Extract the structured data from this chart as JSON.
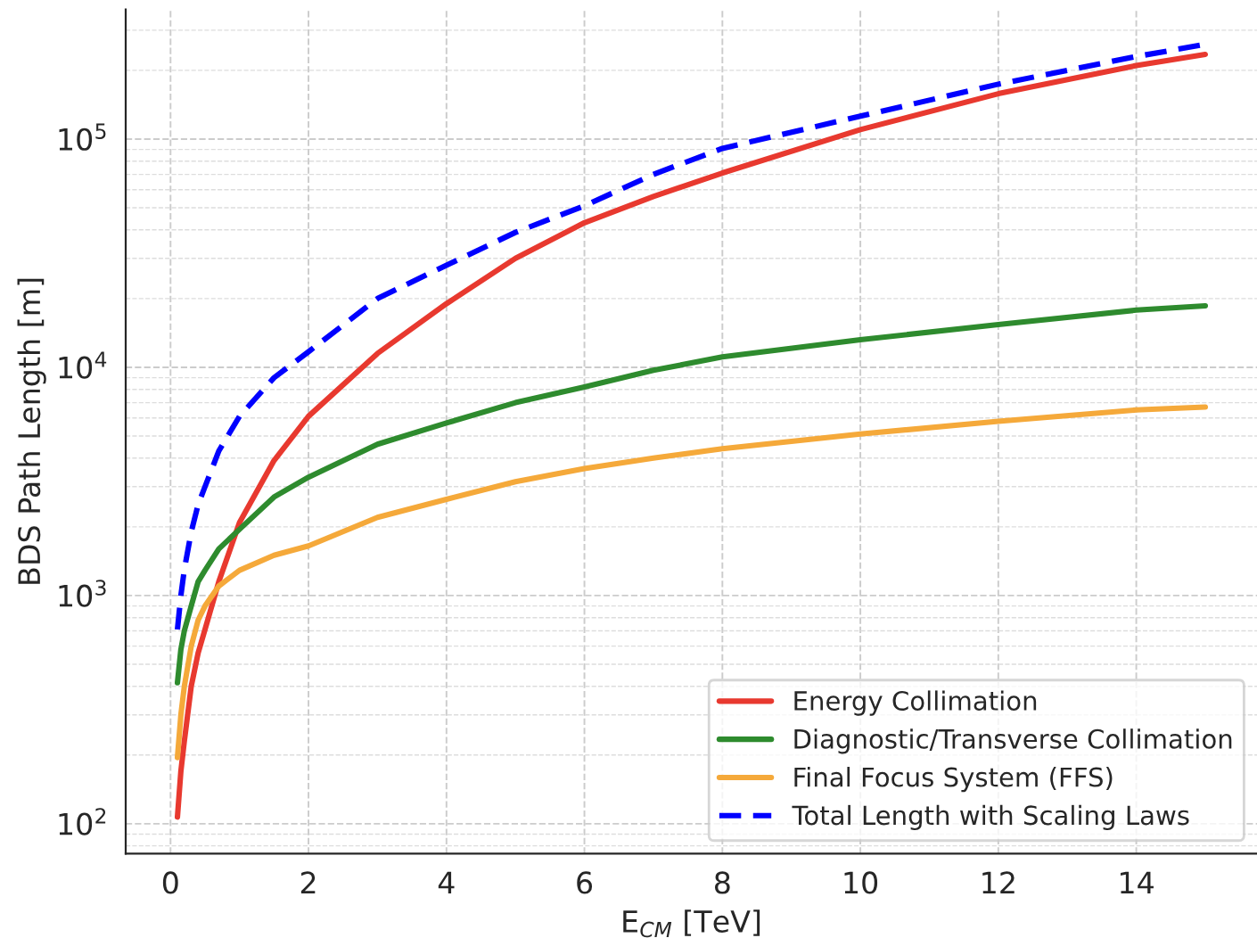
{
  "chart_data": {
    "type": "line",
    "xlabel": "E$_{CM}$ [TeV]",
    "ylabel": "BDS Path Length [m]",
    "x": [
      0.1,
      0.15,
      0.2,
      0.3,
      0.4,
      0.5,
      0.7,
      1,
      1.5,
      2,
      3,
      4,
      5,
      6,
      7,
      8,
      10,
      12,
      14,
      15
    ],
    "series": [
      {
        "name": "Energy Collimation",
        "color": "#e8392f",
        "values": [
          107,
          170,
          230,
          400,
          560,
          710,
          1150,
          2090,
          3900,
          6100,
          11500,
          19000,
          30000,
          43000,
          56000,
          71000,
          110000,
          158000,
          210000,
          235000
        ]
      },
      {
        "name": "Diagnostic/Transverse Collimation",
        "color": "#2e8b2e",
        "values": [
          415,
          580,
          700,
          900,
          1150,
          1290,
          1600,
          1950,
          2700,
          3300,
          4600,
          5700,
          7000,
          8200,
          9700,
          11100,
          13200,
          15400,
          17800,
          18600
        ]
      },
      {
        "name": "Final Focus System (FFS)",
        "color": "#f5a93a",
        "values": [
          195,
          300,
          400,
          600,
          780,
          900,
          1100,
          1290,
          1500,
          1650,
          2200,
          2640,
          3150,
          3600,
          4000,
          4400,
          5100,
          5800,
          6500,
          6700
        ]
      },
      {
        "name": "Total Length with Scaling Laws",
        "color": "#0000ff",
        "line_style": "dashed",
        "values": [
          710,
          1000,
          1300,
          1900,
          2500,
          3000,
          4300,
          6100,
          9000,
          11700,
          20000,
          28000,
          39000,
          51000,
          70000,
          91000,
          126000,
          174000,
          230000,
          260000
        ]
      }
    ],
    "log": "y",
    "xlim": [
      -0.65,
      15.75
    ],
    "ylim": [
      74,
      370000
    ],
    "xticks": [
      0,
      2,
      4,
      6,
      8,
      10,
      12,
      14
    ],
    "yticks": [
      {
        "value": 100,
        "label": "10$^{2}$"
      },
      {
        "value": 1000,
        "label": "10$^{3}$"
      },
      {
        "value": 10000,
        "label": "10$^{4}$"
      },
      {
        "value": 100000,
        "label": "10$^{5}$"
      }
    ],
    "grid": true,
    "legend": "bottom right",
    "line_style": "solid"
  }
}
